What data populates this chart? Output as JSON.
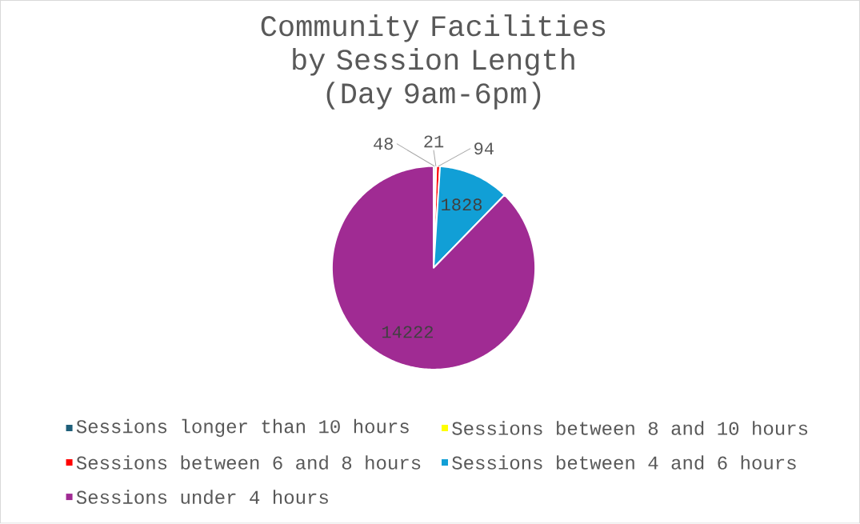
{
  "chart_data": {
    "type": "pie",
    "title": "Community Facilities by Session Length",
    "subtitle": "(Day 9am-6pm)",
    "categories": [
      "Sessions longer than 10 hours",
      "Sessions between 8 and 10 hours",
      "Sessions between 6 and 8 hours",
      "Sessions between 4 and 6 hours",
      "Sessions under 4 hours"
    ],
    "values": [
      48,
      21,
      94,
      1828,
      14222
    ],
    "colors": [
      "#1f5f7a",
      "#ffff00",
      "#ff0000",
      "#119fd6",
      "#a02b93"
    ],
    "data_labels": true,
    "legend": "bottom"
  }
}
